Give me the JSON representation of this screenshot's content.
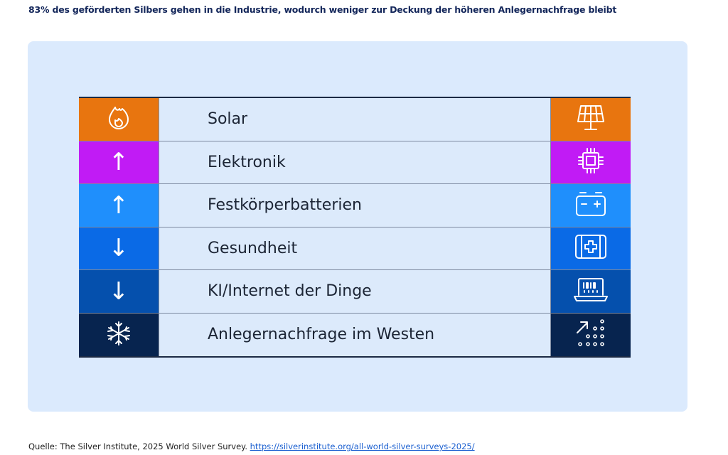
{
  "title": "83% des geförderten Silbers gehen in die Industrie, wodurch weniger zur Deckung der höheren Anlegernachfrage bleibt",
  "rows": [
    {
      "label": "Solar",
      "trend": "flame-icon",
      "trend_glyph": "",
      "icon": "solar-panel-icon",
      "color": "#e8750f"
    },
    {
      "label": "Elektronik",
      "trend": "arrow-up-icon",
      "trend_glyph": "↑",
      "icon": "chip-icon",
      "color": "#c11bf5"
    },
    {
      "label": "Festkörperbatterien",
      "trend": "arrow-up-icon",
      "trend_glyph": "↑",
      "icon": "battery-icon",
      "color": "#1f8ffc"
    },
    {
      "label": "Gesundheit",
      "trend": "arrow-down-icon",
      "trend_glyph": "↓",
      "icon": "medical-kit-icon",
      "color": "#0a6ae6"
    },
    {
      "label": "KI/Internet der Dinge",
      "trend": "arrow-down-icon",
      "trend_glyph": "↓",
      "icon": "laptop-binary-icon",
      "color": "#0550ad"
    },
    {
      "label": "Anlegernachfrage im Westen",
      "trend": "snowflake-icon",
      "trend_glyph": "❄",
      "icon": "growth-dots-icon",
      "color": "#07244f"
    }
  ],
  "source": {
    "prefix": "Quelle: The Silver Institute, 2025 World Silver Survey. ",
    "link": "https://silverinstitute.org/all-world-silver-surveys-2025/"
  }
}
